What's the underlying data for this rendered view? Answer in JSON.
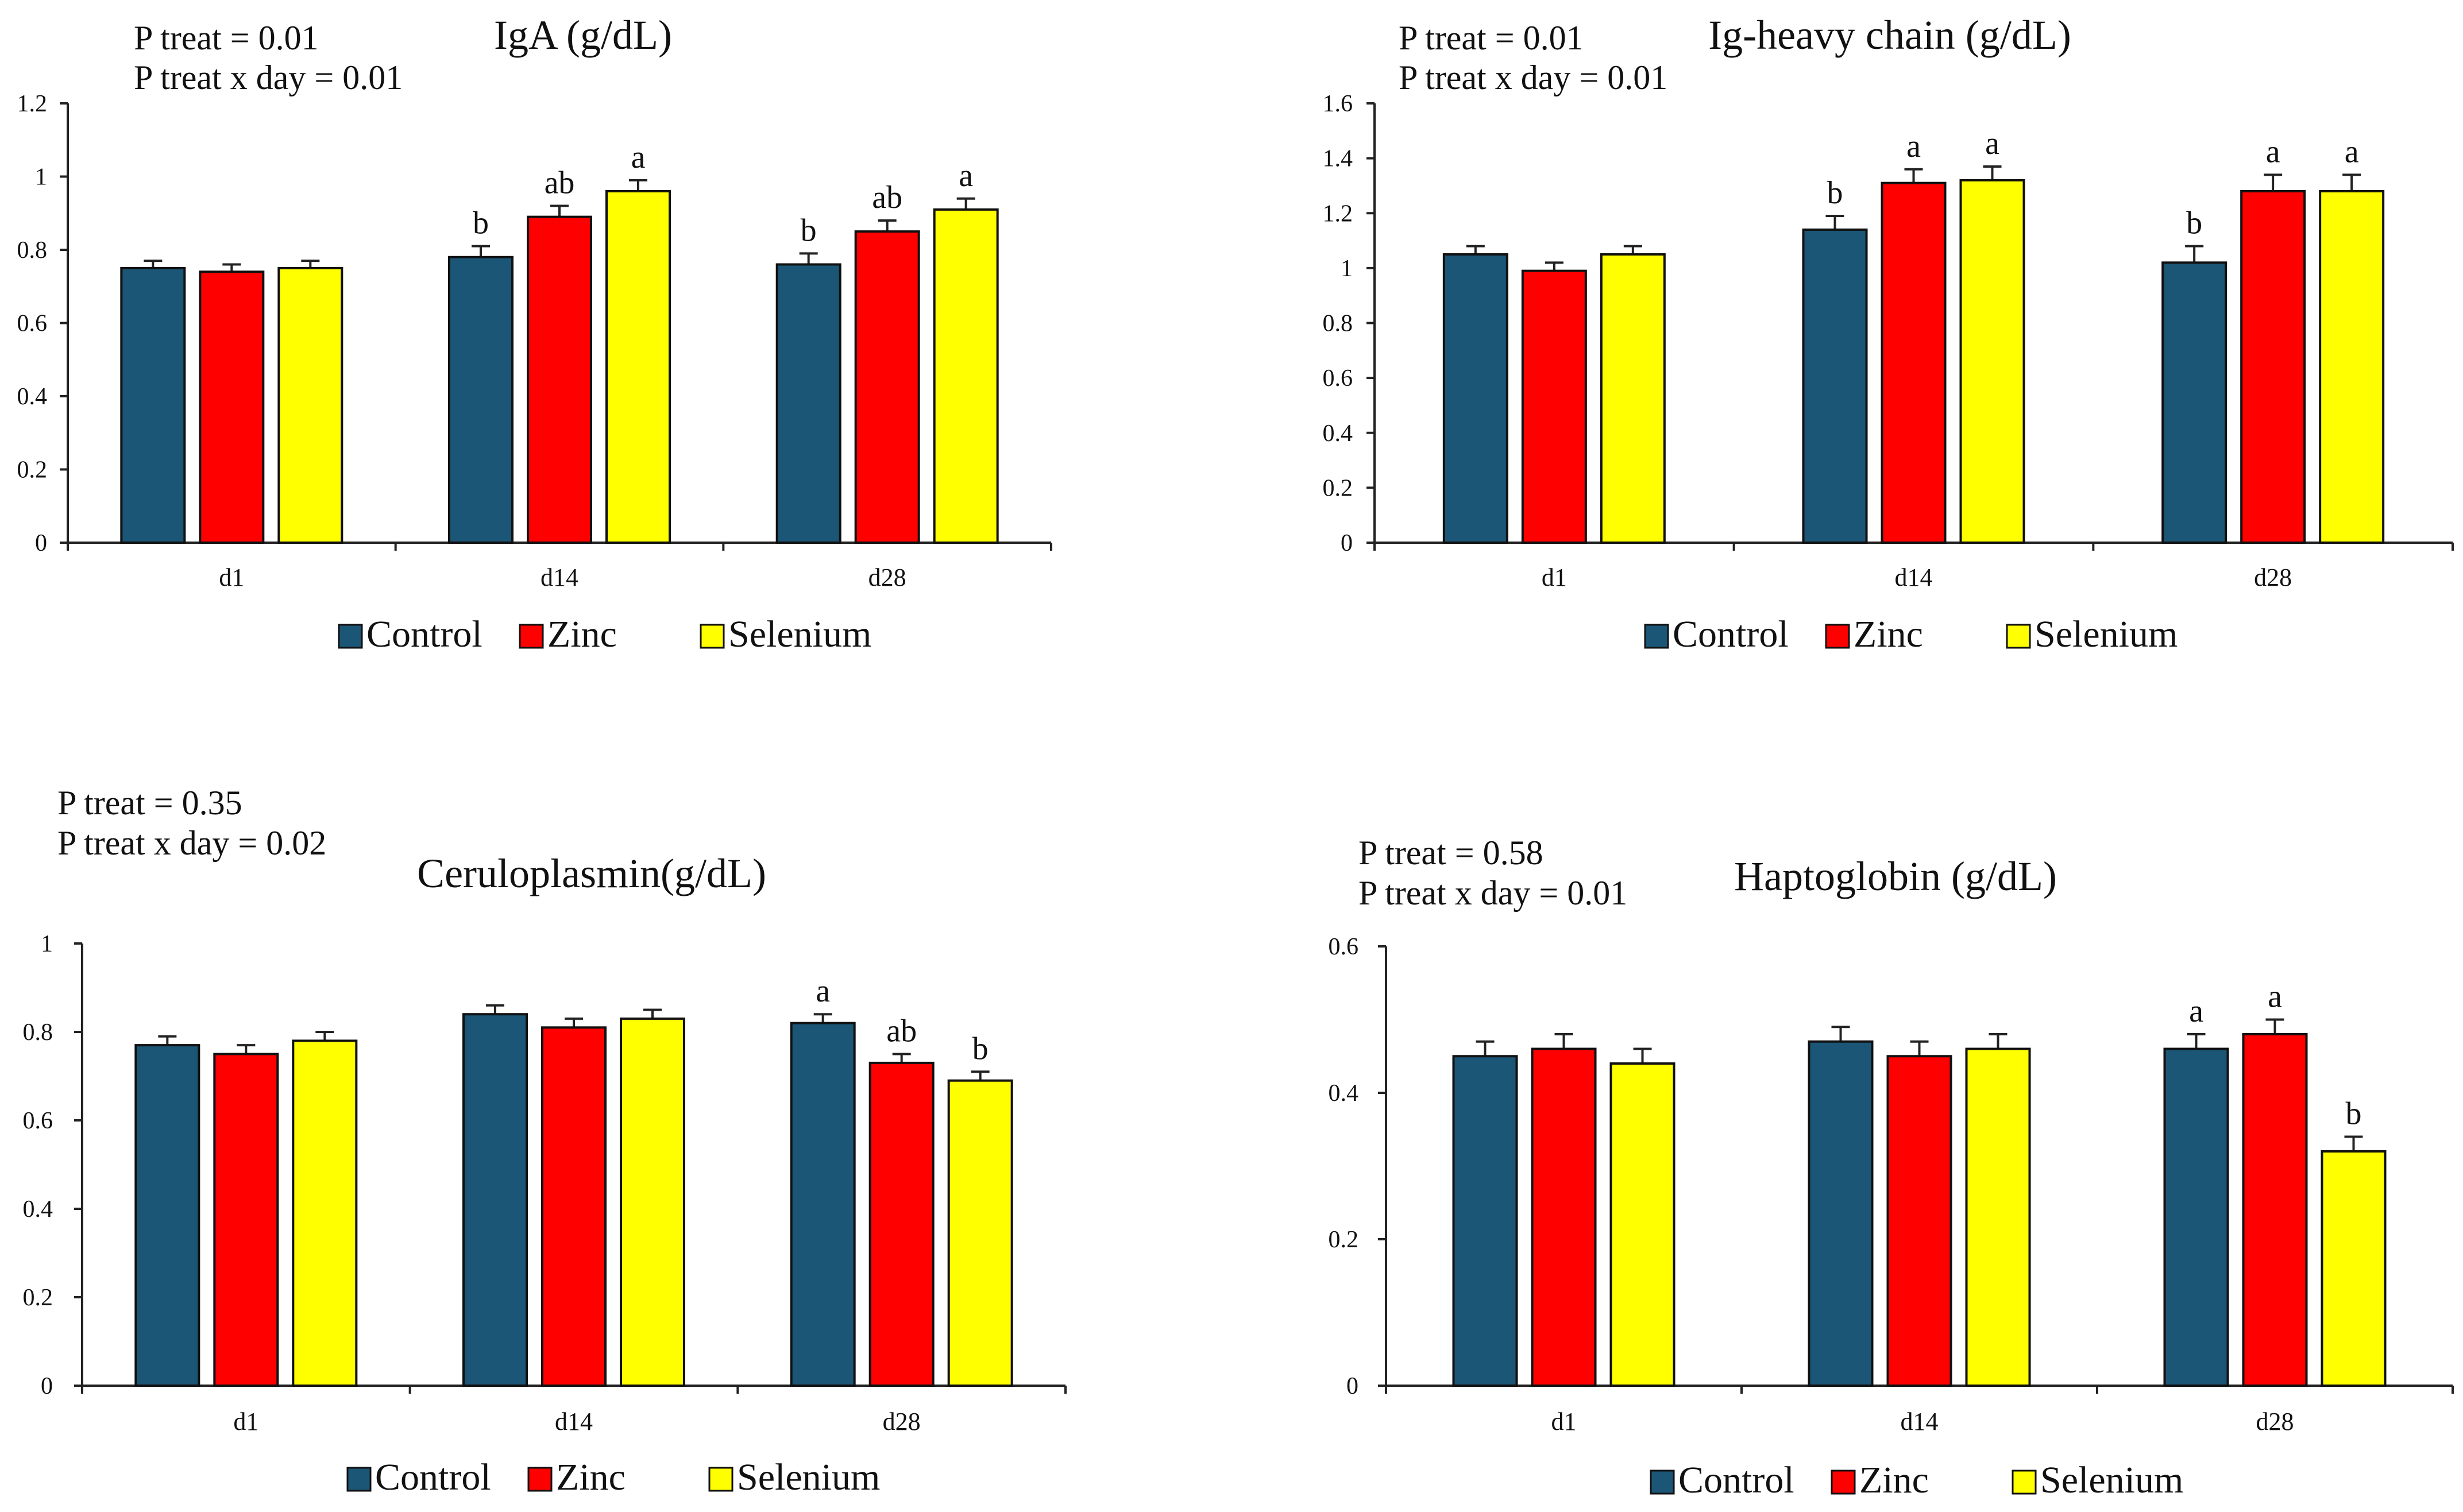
{
  "chart_data": [
    {
      "type": "bar",
      "title": "IgA (g/dL)",
      "stats": [
        "P treat = 0.01",
        "P treat x day = 0.01"
      ],
      "categories": [
        "d1",
        "d14",
        "d28"
      ],
      "ylim": [
        0,
        1.2
      ],
      "yticks": [
        "0",
        "0.2",
        "0.4",
        "0.6",
        "0.8",
        "1",
        "1.2"
      ],
      "series": [
        {
          "name": "Control",
          "color": "#1b5677",
          "values": [
            0.75,
            0.78,
            0.76
          ],
          "errors": [
            0.02,
            0.03,
            0.03
          ],
          "letters": [
            "",
            "b",
            "b"
          ]
        },
        {
          "name": "Zinc",
          "color": "#fe0000",
          "values": [
            0.74,
            0.89,
            0.85
          ],
          "errors": [
            0.02,
            0.03,
            0.03
          ],
          "letters": [
            "",
            "ab",
            "ab"
          ]
        },
        {
          "name": "Selenium",
          "color": "#ffff00",
          "values": [
            0.75,
            0.96,
            0.91
          ],
          "errors": [
            0.02,
            0.03,
            0.03
          ],
          "letters": [
            "",
            "a",
            "a"
          ]
        }
      ],
      "legend": [
        "Control",
        "Zinc",
        "Selenium"
      ]
    },
    {
      "type": "bar",
      "title": "Ig-heavy  chain  (g/dL)",
      "stats": [
        "P treat = 0.01",
        "P treat x day = 0.01"
      ],
      "categories": [
        "d1",
        "d14",
        "d28"
      ],
      "ylim": [
        0,
        1.6
      ],
      "yticks": [
        "0",
        "0.2",
        "0.4",
        "0.6",
        "0.8",
        "1",
        "1.2",
        "1.4",
        "1.6"
      ],
      "series": [
        {
          "name": "Control",
          "color": "#1b5677",
          "values": [
            1.05,
            1.14,
            1.02
          ],
          "errors": [
            0.03,
            0.05,
            0.06
          ],
          "letters": [
            "",
            "b",
            "b"
          ]
        },
        {
          "name": "Zinc",
          "color": "#fe0000",
          "values": [
            0.99,
            1.31,
            1.28
          ],
          "errors": [
            0.03,
            0.05,
            0.06
          ],
          "letters": [
            "",
            "a",
            "a"
          ]
        },
        {
          "name": "Selenium",
          "color": "#ffff00",
          "values": [
            1.05,
            1.32,
            1.28
          ],
          "errors": [
            0.03,
            0.05,
            0.06
          ],
          "letters": [
            "",
            "a",
            "a"
          ]
        }
      ],
      "legend": [
        "Control",
        "Zinc",
        "Selenium"
      ]
    },
    {
      "type": "bar",
      "title": "Ceruloplasmin(g/dL)",
      "stats": [
        "P treat = 0.35",
        "P treat x day = 0.02"
      ],
      "categories": [
        "d1",
        "d14",
        "d28"
      ],
      "ylim": [
        0,
        1
      ],
      "yticks": [
        "0",
        "0.2",
        "0.4",
        "0.6",
        "0.8",
        "1"
      ],
      "series": [
        {
          "name": "Control",
          "color": "#1b5677",
          "values": [
            0.77,
            0.84,
            0.82
          ],
          "errors": [
            0.02,
            0.02,
            0.02
          ],
          "letters": [
            "",
            "",
            "a"
          ]
        },
        {
          "name": "Zinc",
          "color": "#fe0000",
          "values": [
            0.75,
            0.81,
            0.73
          ],
          "errors": [
            0.02,
            0.02,
            0.02
          ],
          "letters": [
            "",
            "",
            "ab"
          ]
        },
        {
          "name": "Selenium",
          "color": "#ffff00",
          "values": [
            0.78,
            0.83,
            0.69
          ],
          "errors": [
            0.02,
            0.02,
            0.02
          ],
          "letters": [
            "",
            "",
            "b"
          ]
        }
      ],
      "legend": [
        "Control",
        "Zinc",
        "Selenium"
      ]
    },
    {
      "type": "bar",
      "title": "Haptoglobin  (g/dL)",
      "stats": [
        "P treat = 0.58",
        "P treat x day = 0.01"
      ],
      "categories": [
        "d1",
        "d14",
        "d28"
      ],
      "ylim": [
        0,
        0.6
      ],
      "yticks": [
        "0",
        "0.2",
        "0.4",
        "0.6"
      ],
      "series": [
        {
          "name": "Control",
          "color": "#1b5677",
          "values": [
            0.45,
            0.47,
            0.46
          ],
          "errors": [
            0.02,
            0.02,
            0.02
          ],
          "letters": [
            "",
            "",
            "a"
          ]
        },
        {
          "name": "Zinc",
          "color": "#fe0000",
          "values": [
            0.46,
            0.45,
            0.48
          ],
          "errors": [
            0.02,
            0.02,
            0.02
          ],
          "letters": [
            "",
            "",
            "a"
          ]
        },
        {
          "name": "Selenium",
          "color": "#ffff00",
          "values": [
            0.44,
            0.46,
            0.32
          ],
          "errors": [
            0.02,
            0.02,
            0.02
          ],
          "letters": [
            "",
            "",
            "b"
          ]
        }
      ],
      "legend": [
        "Control",
        "Zinc",
        "Selenium"
      ]
    }
  ]
}
